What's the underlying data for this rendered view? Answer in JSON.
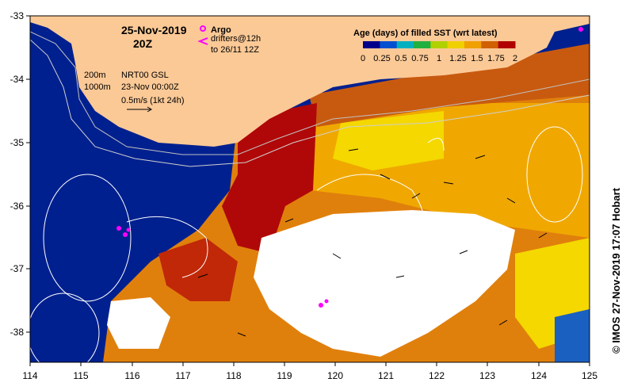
{
  "map": {
    "date_line": "25-Nov-2019",
    "time_line": "20Z",
    "argo_label": "Argo",
    "drifters_label_1": "drifters@12h",
    "drifters_label_2": "to 26/11 12Z",
    "depth_200": "200m",
    "depth_1000": "1000m",
    "product": "NRT00 GSL",
    "product_time": "23-Nov 00:00Z",
    "scale_vector": "0.5m/s (1kt 24h)",
    "colorbar_title": "Age (days) of filled SST (wrt latest)",
    "colorbar_ticks": [
      "0",
      "0.25",
      "0.5",
      "0.75",
      "1",
      "1.25",
      "1.5",
      "1.75",
      "2"
    ],
    "colorbar_colors": [
      "#00008b",
      "#0050d0",
      "#00b0c0",
      "#20b040",
      "#b0d000",
      "#f0d000",
      "#f0a000",
      "#d06000",
      "#b00000"
    ],
    "credit": "© IMOS 27-Nov-2019 17:07 Hobart",
    "lon_ticks": [
      "114",
      "115",
      "116",
      "117",
      "118",
      "119",
      "120",
      "121",
      "122",
      "123",
      "124",
      "125"
    ],
    "lat_ticks": [
      "-33",
      "-34",
      "-35",
      "-36",
      "-37",
      "-38"
    ],
    "colors": {
      "land": "#fbc996",
      "deep": "#00208f",
      "fill_red": "#b00808",
      "fill_orange": "#e0800c",
      "fill_amber": "#f0a800",
      "fill_yellow": "#f4d800",
      "no_data": "#ffffff",
      "argo_marker": "#ff00ff"
    }
  }
}
